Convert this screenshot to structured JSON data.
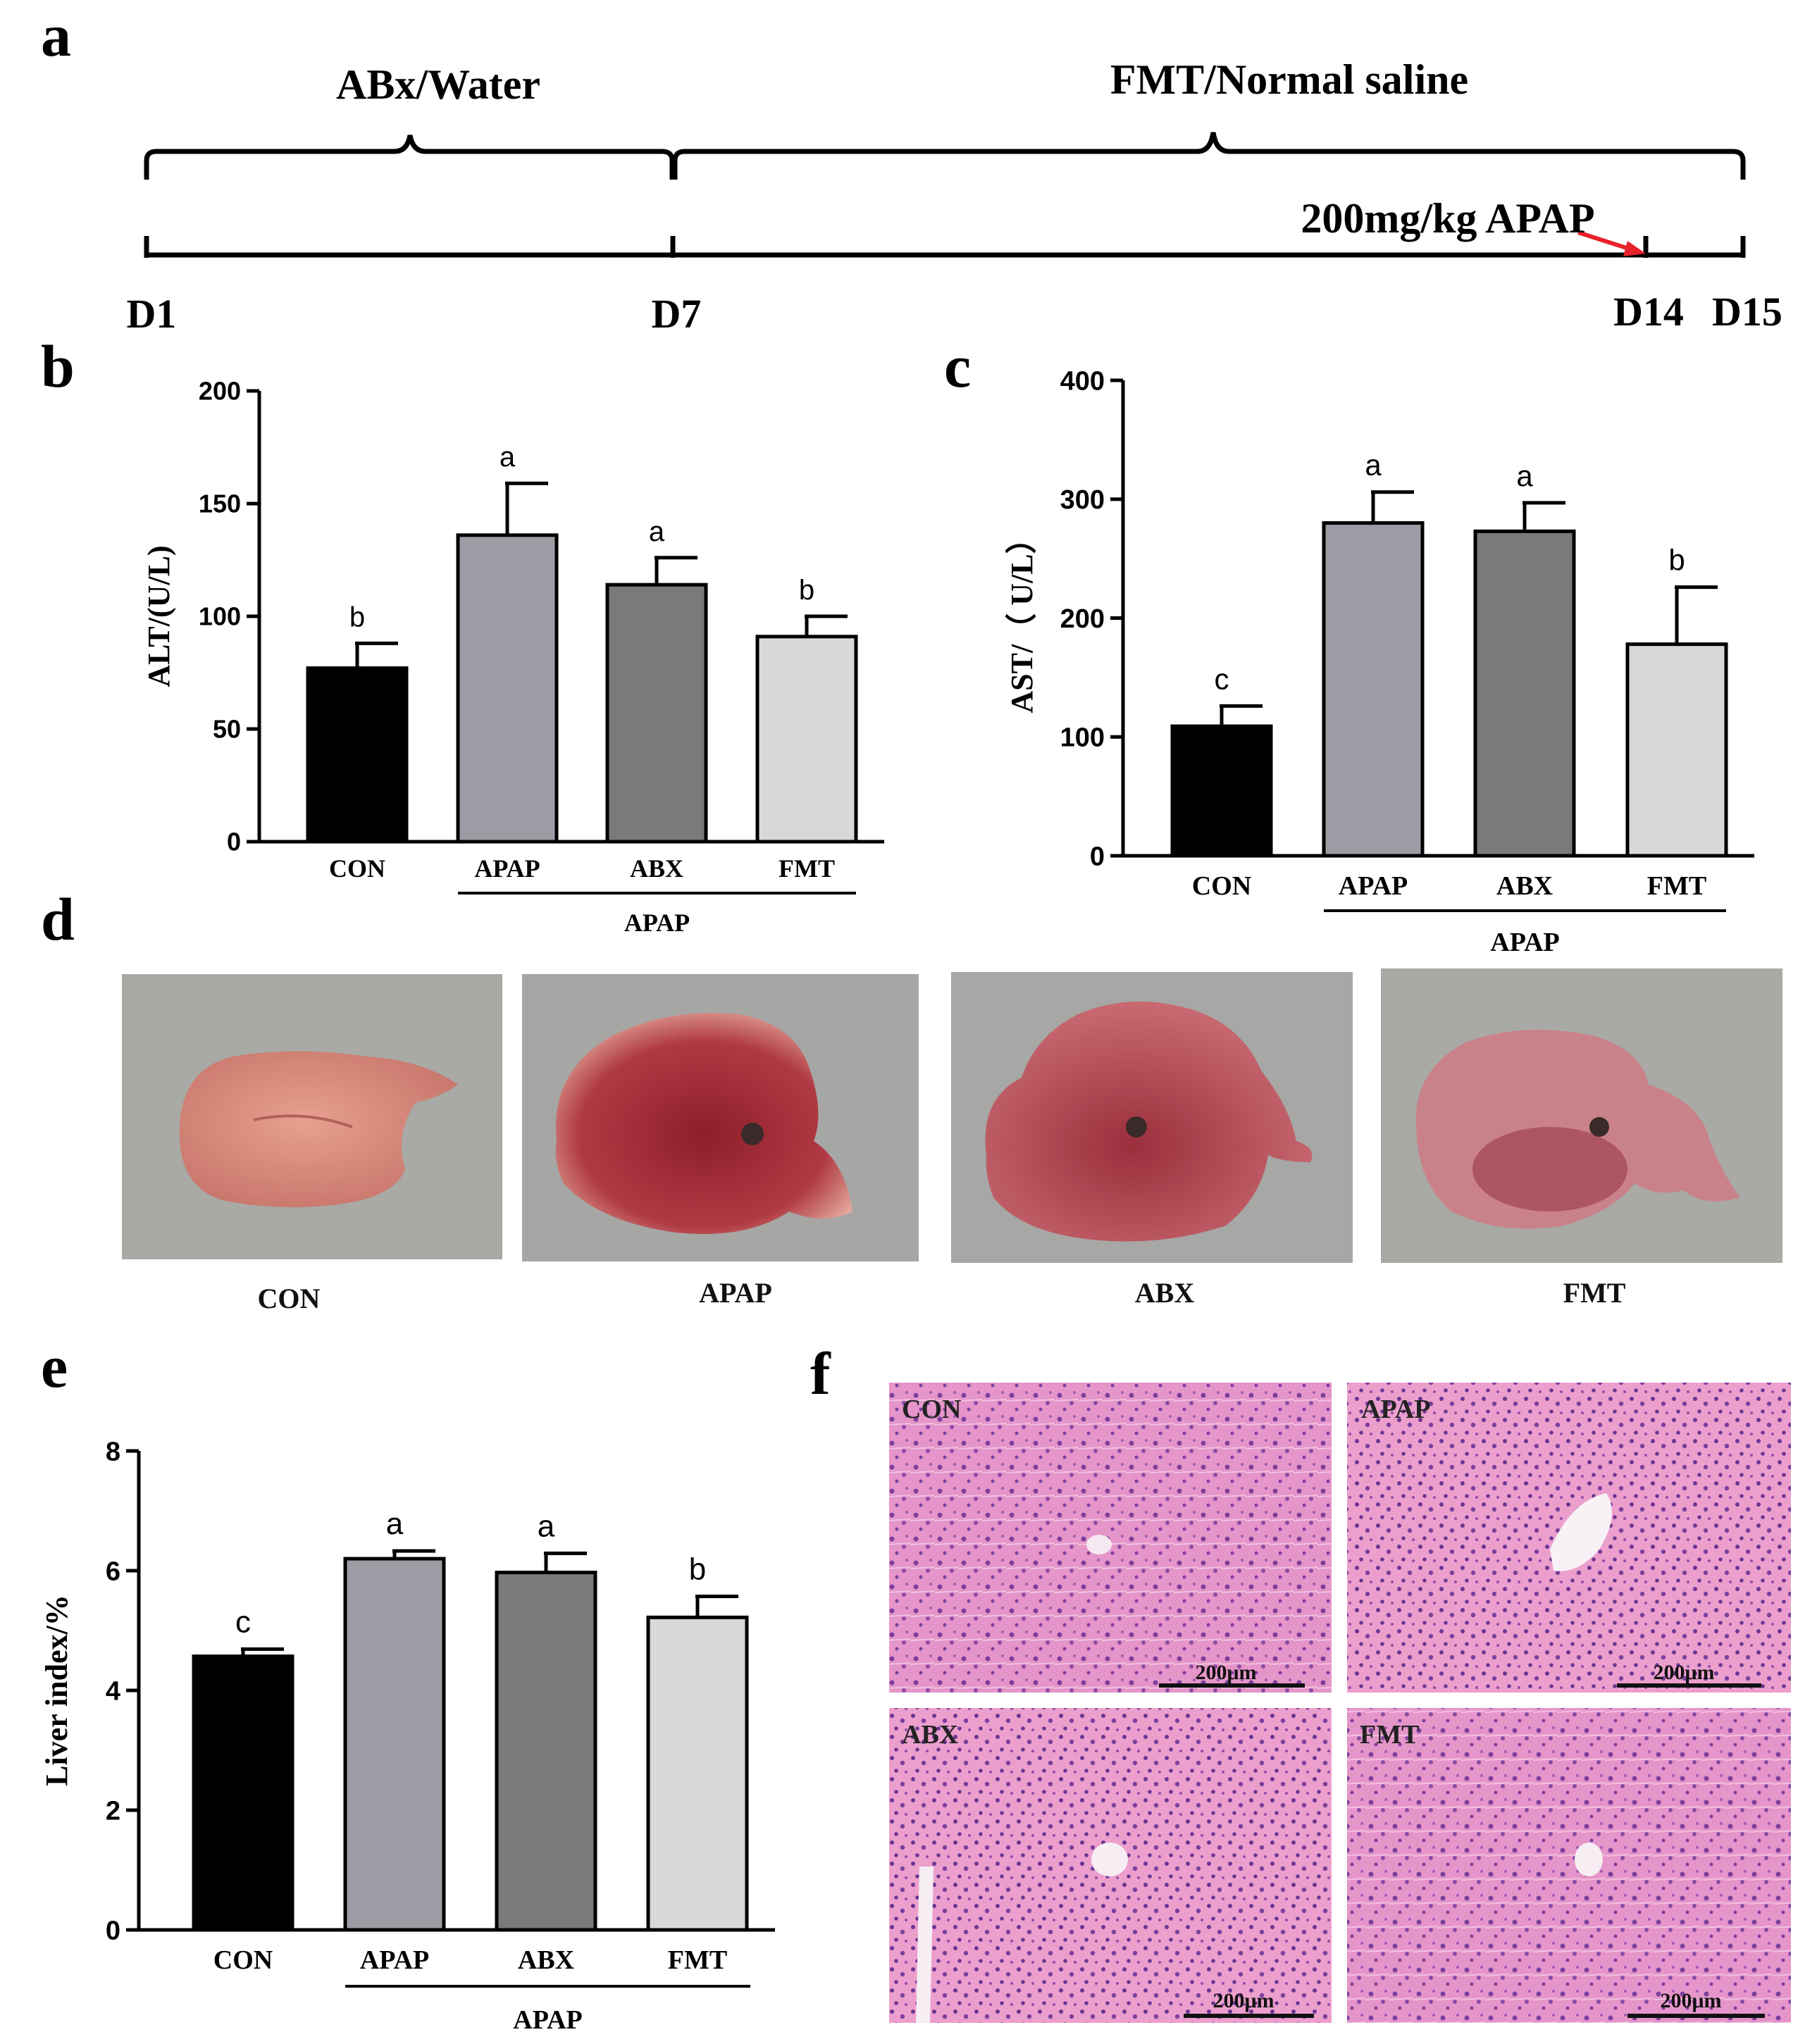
{
  "panels": {
    "a": "a",
    "b": "b",
    "c": "c",
    "d": "d",
    "e": "e",
    "f": "f"
  },
  "timeline": {
    "top_left_label": "ABx/Water",
    "top_right_label": "FMT/Normal saline",
    "apap_label": "200mg/kg APAP",
    "days": [
      "D1",
      "D7",
      "D14",
      "D15"
    ]
  },
  "liver_photos": {
    "labels": [
      "CON",
      "APAP",
      "ABX",
      "FMT"
    ]
  },
  "histology": {
    "labels": [
      "CON",
      "APAP",
      "ABX",
      "FMT"
    ],
    "scale_bar": "200μm"
  },
  "chart_data": [
    {
      "type": "bar",
      "panel": "b",
      "categories": [
        "CON",
        "APAP",
        "ABX",
        "FMT"
      ],
      "values": [
        77,
        136,
        114,
        91
      ],
      "errors": [
        11,
        23,
        12,
        9
      ],
      "significance": [
        "b",
        "a",
        "a",
        "b"
      ],
      "colors": [
        "#000000",
        "#9c9ca4",
        "#7a7a7a",
        "#d8d8d8"
      ],
      "ylabel": "ALT/(U/L)",
      "ylim": [
        0,
        200
      ],
      "yticks": [
        0,
        50,
        100,
        150,
        200
      ],
      "group_label": "APAP"
    },
    {
      "type": "bar",
      "panel": "c",
      "categories": [
        "CON",
        "APAP",
        "ABX",
        "FMT"
      ],
      "values": [
        109,
        280,
        273,
        178
      ],
      "errors": [
        17,
        26,
        24,
        48
      ],
      "significance": [
        "c",
        "a",
        "a",
        "b"
      ],
      "colors": [
        "#000000",
        "#9c9ca4",
        "#7a7a7a",
        "#d8d8d8"
      ],
      "ylabel": "AST/（ U/L）",
      "ylim": [
        0,
        400
      ],
      "yticks": [
        0,
        100,
        200,
        300,
        400
      ],
      "group_label": "APAP"
    },
    {
      "type": "bar",
      "panel": "e",
      "categories": [
        "CON",
        "APAP",
        "ABX",
        "FMT"
      ],
      "values": [
        4.57,
        6.2,
        5.97,
        5.22
      ],
      "errors": [
        0.12,
        0.13,
        0.32,
        0.35
      ],
      "significance": [
        "c",
        "a",
        "a",
        "b"
      ],
      "colors": [
        "#000000",
        "#9c9ca4",
        "#7a7a7a",
        "#d8d8d8"
      ],
      "ylabel": "Liver index/%",
      "ylim": [
        0,
        8
      ],
      "yticks": [
        0,
        2,
        4,
        6,
        8
      ],
      "group_label": "APAP"
    }
  ]
}
